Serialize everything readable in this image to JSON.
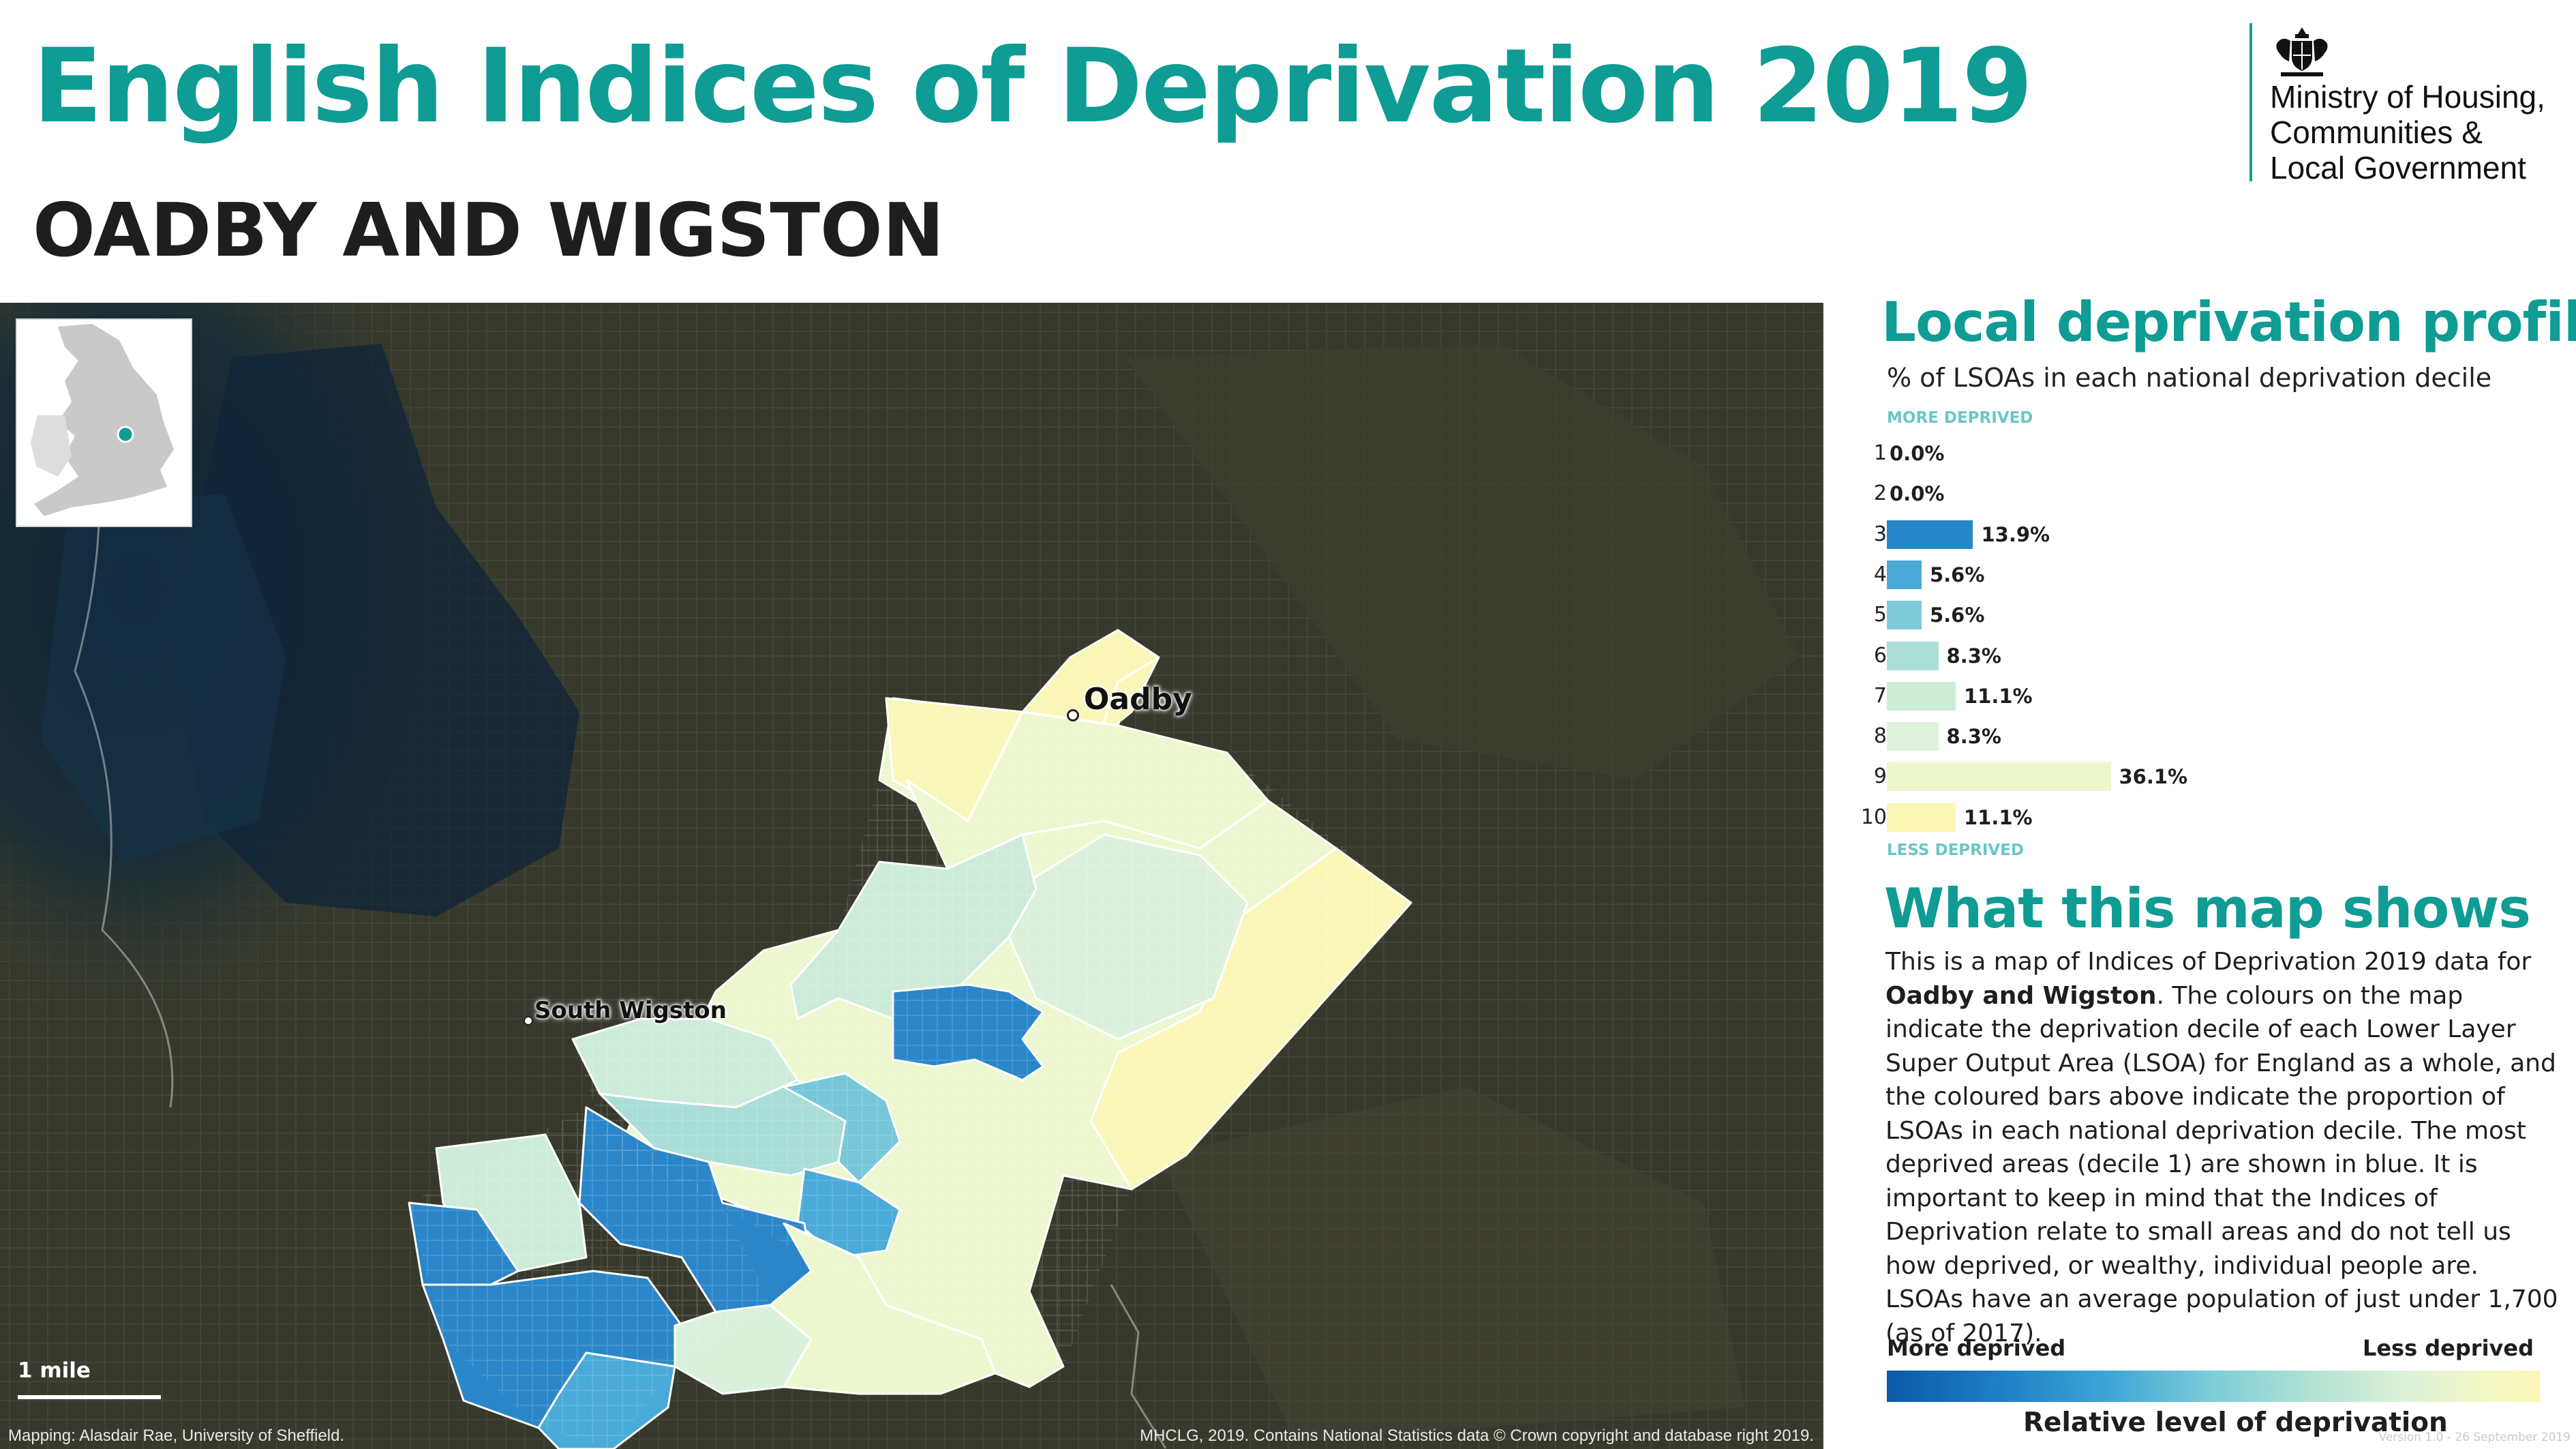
{
  "header": {
    "title": "English Indices of Deprivation 2019",
    "area_name": "OADBY AND WIGSTON"
  },
  "logo": {
    "icon": "royal-crest-icon",
    "lines": [
      "Ministry of Housing,",
      "Communities &",
      "Local Government"
    ]
  },
  "map": {
    "places": [
      {
        "name": "Oadby"
      },
      {
        "name": "South Wigston"
      }
    ],
    "scale_label": "1 mile",
    "credit_left": "Mapping: Alasdair Rae, University of Sheffield.",
    "credit_right": "MHCLG, 2019. Contains National Statistics data © Crown copyright and database right 2019.",
    "colors": {
      "background": "#37392c",
      "decile_3": "#2a86c9",
      "decile_4": "#4aaad8",
      "decile_5": "#76c6d8",
      "decile_6": "#a9ddd7",
      "decile_7": "#cdebd9",
      "decile_8": "#dcf1dc",
      "decile_9": "#ecf7cf",
      "decile_10": "#faf6b8"
    }
  },
  "profile": {
    "title": "Local deprivation profile",
    "subtitle": "% of LSOAs in each national deprivation decile",
    "more_label": "MORE DEPRIVED",
    "less_label": "LESS DEPRIVED",
    "deciles": [
      {
        "decile": "1",
        "percent": 0.0,
        "label": "0.0%",
        "color": "#0a5aa7"
      },
      {
        "decile": "2",
        "percent": 0.0,
        "label": "0.0%",
        "color": "#1f6fba"
      },
      {
        "decile": "3",
        "percent": 13.9,
        "label": "13.9%",
        "color": "#2586c8"
      },
      {
        "decile": "4",
        "percent": 5.6,
        "label": "5.6%",
        "color": "#4aaad8"
      },
      {
        "decile": "5",
        "percent": 5.6,
        "label": "5.6%",
        "color": "#7ecbd9"
      },
      {
        "decile": "6",
        "percent": 8.3,
        "label": "8.3%",
        "color": "#acdfd6"
      },
      {
        "decile": "7",
        "percent": 11.1,
        "label": "11.1%",
        "color": "#cdecd8"
      },
      {
        "decile": "8",
        "percent": 8.3,
        "label": "8.3%",
        "color": "#dff2dc"
      },
      {
        "decile": "9",
        "percent": 36.1,
        "label": "36.1%",
        "color": "#ecf7cb"
      },
      {
        "decile": "10",
        "percent": 11.1,
        "label": "11.1%",
        "color": "#fbf6b4"
      }
    ]
  },
  "explainer": {
    "title": "What this map shows",
    "text_before": "This is a map of Indices of Deprivation 2019 data for ",
    "area_bold": "Oadby and Wigston",
    "text_after": ". The colours on the map indicate the deprivation decile of each Lower Layer Super Output Area (LSOA) for England as a whole, and the coloured bars above indicate the proportion of LSOAs in each national deprivation decile. The most deprived areas (decile 1) are shown in blue. It is important to keep in mind that the Indices of Deprivation relate to small areas and do not tell us how deprived, or wealthy, individual people are. LSOAs have an average population of just under 1,700 (as of 2017)."
  },
  "legend": {
    "more": "More deprived",
    "less": "Less deprived",
    "title": "Relative level of deprivation"
  },
  "footer": {
    "version": "Version 1.0 - 26 September 2019"
  }
}
